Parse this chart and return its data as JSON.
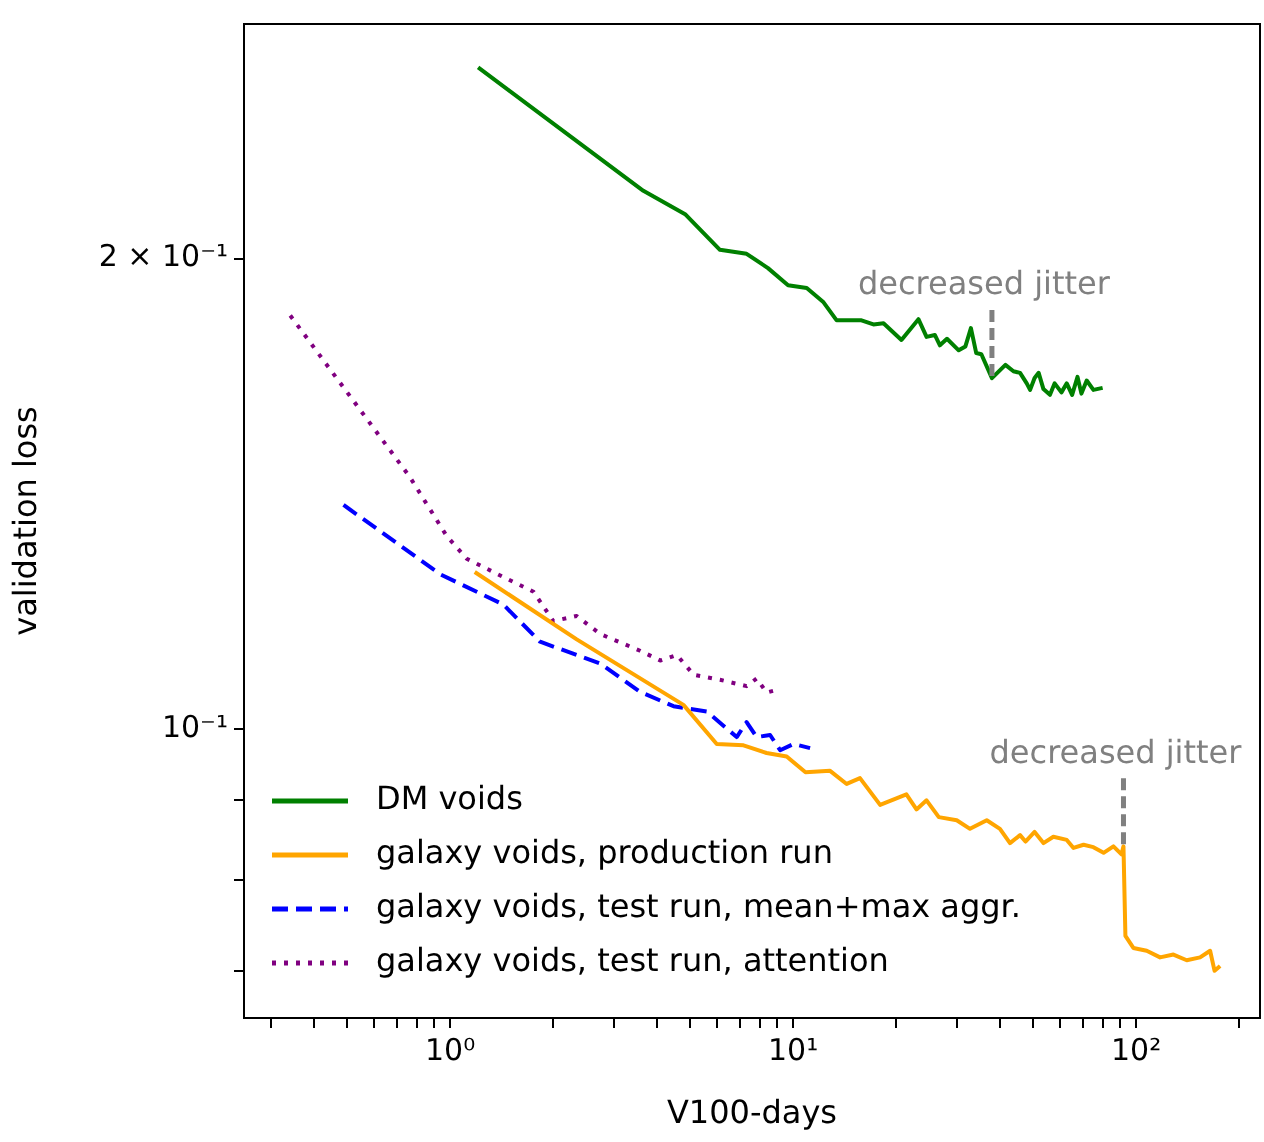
{
  "chart_data": {
    "type": "line",
    "xlabel": "V100-days",
    "ylabel": "validation loss",
    "log": "xy",
    "grid": false,
    "legend": "bottom left",
    "marker": "none",
    "xlim": [
      0.2507,
      229.8
    ],
    "ylim": [
      0.0653,
      0.2826
    ],
    "xticks": [
      {
        "value": 0.3,
        "label": null
      },
      {
        "value": 0.4,
        "label": null
      },
      {
        "value": 0.5,
        "label": null
      },
      {
        "value": 0.6,
        "label": null
      },
      {
        "value": 0.7,
        "label": null
      },
      {
        "value": 0.8,
        "label": null
      },
      {
        "value": 0.9,
        "label": null
      },
      {
        "value": 1,
        "label": "10⁰"
      },
      {
        "value": 2,
        "label": null
      },
      {
        "value": 3,
        "label": null
      },
      {
        "value": 4,
        "label": null
      },
      {
        "value": 5,
        "label": null
      },
      {
        "value": 6,
        "label": null
      },
      {
        "value": 7,
        "label": null
      },
      {
        "value": 8,
        "label": null
      },
      {
        "value": 9,
        "label": null
      },
      {
        "value": 10,
        "label": "10¹"
      },
      {
        "value": 20,
        "label": null
      },
      {
        "value": 30,
        "label": null
      },
      {
        "value": 40,
        "label": null
      },
      {
        "value": 50,
        "label": null
      },
      {
        "value": 60,
        "label": null
      },
      {
        "value": 70,
        "label": null
      },
      {
        "value": 80,
        "label": null
      },
      {
        "value": 90,
        "label": null
      },
      {
        "value": 100,
        "label": "10²"
      },
      {
        "value": 200,
        "label": null
      }
    ],
    "yticks": [
      {
        "value": 0.07,
        "label": null
      },
      {
        "value": 0.08,
        "label": null
      },
      {
        "value": 0.09,
        "label": null
      },
      {
        "value": 0.1,
        "label": "10⁻¹"
      },
      {
        "value": 0.2,
        "label": "2 × 10⁻¹"
      }
    ],
    "series": [
      {
        "name": "DM voids",
        "color": "#008000",
        "line_style": "solid",
        "x": [
          1.207,
          3.66,
          4.86,
          6.12,
          7.32,
          8.45,
          9.67,
          10.96,
          12.27,
          13.4,
          15.83,
          17.15,
          18.35,
          20.7,
          23.2,
          24.5,
          25.9,
          26.8,
          28.1,
          30.4,
          31.8,
          33.0,
          34.2,
          35.4,
          38.0,
          41.6,
          43.9,
          45.9,
          48.0,
          49.1,
          50.6,
          52.0,
          53.7,
          56.1,
          57.9,
          60.6,
          62.8,
          65.1,
          67.5,
          69.3,
          71.8,
          75.1,
          79.9
        ],
        "values": [
          0.2651,
          0.221,
          0.2134,
          0.2026,
          0.2014,
          0.1972,
          0.1923,
          0.1915,
          0.1875,
          0.1826,
          0.1826,
          0.1815,
          0.1818,
          0.1774,
          0.1829,
          0.1782,
          0.1787,
          0.176,
          0.1777,
          0.1747,
          0.1757,
          0.1805,
          0.174,
          0.1737,
          0.1677,
          0.171,
          0.1694,
          0.169,
          0.1664,
          0.1648,
          0.1677,
          0.169,
          0.165,
          0.1636,
          0.1664,
          0.1642,
          0.1664,
          0.1636,
          0.168,
          0.1639,
          0.1671,
          0.1648,
          0.1653
        ]
      },
      {
        "name": "galaxy voids, production run",
        "color": "#ffa500",
        "line_style": "solid",
        "x": [
          1.18,
          2.34,
          4.79,
          5.99,
          7.17,
          8.37,
          9.58,
          10.87,
          12.82,
          14.33,
          15.67,
          17.94,
          21.4,
          22.9,
          24.5,
          26.6,
          30.0,
          32.8,
          36.7,
          40.1,
          42.9,
          45.9,
          47.6,
          50.6,
          53.7,
          57.4,
          62.8,
          65.7,
          70.3,
          75.1,
          80.4,
          85.9,
          90.7,
          91.9,
          93.1,
          98.2,
          107.4,
          117.5,
          128.5,
          140.5,
          153.7,
          164.4,
          169.4,
          175.8
        ],
        "values": [
          0.126,
          0.1141,
          0.1036,
          0.0978,
          0.0976,
          0.0965,
          0.096,
          0.0938,
          0.094,
          0.0922,
          0.093,
          0.0894,
          0.0908,
          0.0888,
          0.09,
          0.0878,
          0.0874,
          0.0863,
          0.0874,
          0.0863,
          0.0845,
          0.0855,
          0.0847,
          0.0859,
          0.0845,
          0.0853,
          0.0849,
          0.0839,
          0.0843,
          0.084,
          0.0833,
          0.0841,
          0.0831,
          0.0841,
          0.0737,
          0.0724,
          0.0721,
          0.0714,
          0.0717,
          0.0711,
          0.0714,
          0.0721,
          0.07,
          0.0705
        ]
      },
      {
        "name": "galaxy voids, test run, mean+max aggr.",
        "color": "#0000ff",
        "line_style": "dashed",
        "x": [
          0.489,
          0.935,
          1.43,
          1.83,
          2.74,
          3.58,
          4.48,
          5.6,
          6.85,
          7.32,
          7.83,
          8.57,
          9.17,
          10.03,
          11.21
        ],
        "values": [
          0.1391,
          0.1256,
          0.1201,
          0.1137,
          0.1101,
          0.1056,
          0.1034,
          0.1026,
          0.0988,
          0.101,
          0.0988,
          0.0991,
          0.0969,
          0.0978,
          0.0972
        ]
      },
      {
        "name": "galaxy voids, test run, attention",
        "color": "#800080",
        "line_style": "dotted",
        "x": [
          0.342,
          0.764,
          0.977,
          1.118,
          1.46,
          1.75,
          2.0,
          2.34,
          2.74,
          3.58,
          4.1,
          4.58,
          5.13,
          6.12,
          7.32,
          7.83,
          8.37,
          8.96
        ],
        "values": [
          0.1839,
          0.1449,
          0.1329,
          0.1285,
          0.1248,
          0.1224,
          0.1172,
          0.1181,
          0.115,
          0.1122,
          0.1106,
          0.1115,
          0.1083,
          0.1075,
          0.1065,
          0.1077,
          0.1055,
          0.1059
        ]
      }
    ],
    "annotations": [
      {
        "text": "decreased jitter",
        "x": 38.0,
        "y": 0.1677
      },
      {
        "text": "decreased jitter",
        "x": 91.9,
        "y": 0.0841
      }
    ]
  }
}
